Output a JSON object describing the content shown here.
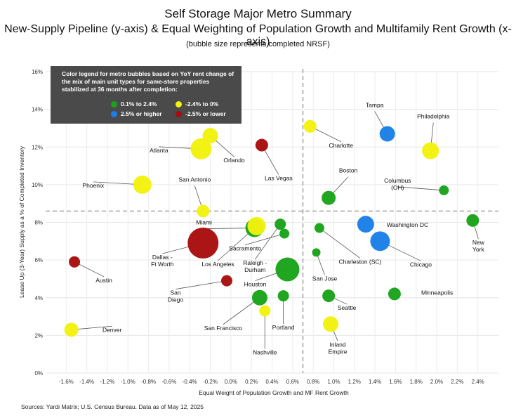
{
  "chart_data": {
    "type": "scatter",
    "title": "Self Storage Major Metro Summary",
    "subtitle": "New-Supply Pipeline (y-axis) & Equal Weighting of Population Growth and Multifamily Rent Growth (x-axis)",
    "note": "(bubble size represents completed NRSF)",
    "xlabel": "Equal Weight of Population Growth and MF Rent Growth",
    "ylabel": "Lease Up (3-Year) Supply as a % of Completed Inventory",
    "xlim": [
      -1.8,
      2.6
    ],
    "ylim": [
      0,
      16
    ],
    "xticks": [
      -1.6,
      -1.4,
      -1.2,
      -1.0,
      -0.8,
      -0.6,
      -0.4,
      -0.2,
      0.0,
      0.2,
      0.4,
      0.6,
      0.8,
      1.0,
      1.2,
      1.4,
      1.6,
      1.8,
      2.0,
      2.2,
      2.4
    ],
    "xtick_labels": [
      "-1.6%",
      "-1.4%",
      "-1.2%",
      "-1.0%",
      "-0.8%",
      "-0.6%",
      "-0.4%",
      "-0.2%",
      "0.0%",
      "0.2%",
      "0.4%",
      "0.6%",
      "0.8%",
      "1.0%",
      "1.2%",
      "1.4%",
      "1.6%",
      "1.8%",
      "2.0%",
      "2.2%",
      "2.4%"
    ],
    "yticks": [
      0,
      2,
      4,
      6,
      8,
      10,
      12,
      14,
      16
    ],
    "ytick_labels": [
      "0%",
      "2%",
      "4%",
      "6%",
      "8%",
      "10%",
      "12%",
      "14%",
      "16%"
    ],
    "reference_lines": {
      "x": 0.7,
      "y": 8.6
    },
    "grid": true,
    "legend": {
      "title": "Color legend for metro bubbles based on YoY rent change of the mix of main unit types for same-store properties stabilized at 36 months after completion:",
      "items": [
        {
          "label": "0.1% to 2.4%",
          "color": "#1aa31a"
        },
        {
          "label": "-2.4% to 0%",
          "color": "#f2f20d"
        },
        {
          "label": "2.5% or higher",
          "color": "#1a7fe6"
        },
        {
          "label": "-2.5% or lower",
          "color": "#a80d0d"
        }
      ]
    },
    "colors": {
      "green": "#1aa31a",
      "yellow": "#f2f20d",
      "blue": "#1a7fe6",
      "red": "#a80d0d"
    },
    "points": [
      {
        "name": "Tampa",
        "x": 1.52,
        "y": 12.7,
        "size": 11,
        "color": "blue",
        "label_lines": [
          "Tampa"
        ],
        "label_dx": -18,
        "label_dy": -38,
        "anchor": "middle",
        "leader": true
      },
      {
        "name": "Philadelphia",
        "x": 1.94,
        "y": 11.8,
        "size": 12,
        "color": "yellow",
        "label_lines": [
          "Philadelphia"
        ],
        "label_dx": 4,
        "label_dy": -46,
        "anchor": "middle",
        "leader": true
      },
      {
        "name": "Charlotte",
        "x": 0.77,
        "y": 13.1,
        "size": 9,
        "color": "yellow",
        "label_lines": [
          "Charlotte"
        ],
        "label_dx": 44,
        "label_dy": 30,
        "anchor": "middle",
        "leader": true
      },
      {
        "name": "Boston",
        "x": 0.95,
        "y": 9.3,
        "size": 10,
        "color": "green",
        "label_lines": [
          "Boston"
        ],
        "label_dx": 28,
        "label_dy": -36,
        "anchor": "middle",
        "leader": true
      },
      {
        "name": "Columbus (OH)",
        "x": 2.07,
        "y": 9.7,
        "size": 7,
        "color": "green",
        "label_lines": [
          "Columbus",
          "(OH)"
        ],
        "label_dx": -66,
        "label_dy": -11,
        "anchor": "middle",
        "leader": true
      },
      {
        "name": "Washington DC",
        "x": 1.31,
        "y": 7.9,
        "size": 12,
        "color": "blue",
        "label_lines": [
          "Washington DC"
        ],
        "label_dx": 30,
        "label_dy": 4,
        "anchor": "start",
        "leader": false
      },
      {
        "name": "New York",
        "x": 2.35,
        "y": 8.1,
        "size": 9,
        "color": "green",
        "label_lines": [
          "New",
          "York"
        ],
        "label_dx": 8,
        "label_dy": 34,
        "anchor": "middle",
        "leader": true
      },
      {
        "name": "Chicago",
        "x": 1.45,
        "y": 7.0,
        "size": 14,
        "color": "blue",
        "label_lines": [
          "Chicago"
        ],
        "label_dx": 58,
        "label_dy": 36,
        "anchor": "middle",
        "leader": true
      },
      {
        "name": "Charleston (SC)",
        "x": 0.86,
        "y": 7.7,
        "size": 7,
        "color": "green",
        "label_lines": [
          "Charleston (SC)"
        ],
        "label_dx": 58,
        "label_dy": 51,
        "anchor": "middle",
        "leader": true
      },
      {
        "name": "San Jose",
        "x": 0.83,
        "y": 6.4,
        "size": 6,
        "color": "green",
        "label_lines": [
          "San Jose"
        ],
        "label_dx": 12,
        "label_dy": 40,
        "anchor": "middle",
        "leader": true
      },
      {
        "name": "Seattle",
        "x": 0.95,
        "y": 4.1,
        "size": 9,
        "color": "green",
        "label_lines": [
          "Seattle"
        ],
        "label_dx": 26,
        "label_dy": 20,
        "anchor": "middle",
        "leader": true
      },
      {
        "name": "Minneapolis",
        "x": 1.59,
        "y": 4.2,
        "size": 9,
        "color": "green",
        "label_lines": [
          "Minneapolis"
        ],
        "label_dx": 38,
        "label_dy": 1,
        "anchor": "start",
        "leader": false
      },
      {
        "name": "Inland Empire",
        "x": 0.97,
        "y": 2.6,
        "size": 11,
        "color": "yellow",
        "label_lines": [
          "Inland",
          "Empire"
        ],
        "label_dx": 10,
        "label_dy": 32,
        "anchor": "middle",
        "leader": true
      },
      {
        "name": "Raleigh - Durham",
        "x": 0.48,
        "y": 7.9,
        "size": 8,
        "color": "green",
        "label_lines": [
          "Raleigh -",
          "Durham"
        ],
        "label_dx": -36,
        "label_dy": 58,
        "anchor": "middle",
        "leader": true
      },
      {
        "name": "Sacramento",
        "x": 0.52,
        "y": 7.4,
        "size": 7,
        "color": "green",
        "label_lines": [
          "Sacramento"
        ],
        "label_dx": -56,
        "label_dy": 24,
        "anchor": "middle",
        "leader": true
      },
      {
        "name": "Houston",
        "x": 0.55,
        "y": 5.5,
        "size": 17,
        "color": "green",
        "label_lines": [
          "Houston"
        ],
        "label_dx": -46,
        "label_dy": 24,
        "anchor": "middle",
        "leader": true
      },
      {
        "name": "Portland",
        "x": 0.51,
        "y": 4.1,
        "size": 8,
        "color": "green",
        "label_lines": [
          "Portland"
        ],
        "label_dx": 0,
        "label_dy": 48,
        "anchor": "middle",
        "leader": true
      },
      {
        "name": "Nashville",
        "x": 0.33,
        "y": 3.3,
        "size": 8,
        "color": "yellow",
        "label_lines": [
          "Nashville"
        ],
        "label_dx": 0,
        "label_dy": 62,
        "anchor": "middle",
        "leader": true
      },
      {
        "name": "San Francisco",
        "x": 0.28,
        "y": 4.0,
        "size": 11,
        "color": "green",
        "label_lines": [
          "San Francisco"
        ],
        "label_dx": -52,
        "label_dy": 46,
        "anchor": "middle",
        "leader": true
      },
      {
        "name": "Miami",
        "x": 0.23,
        "y": 7.7,
        "size": 13,
        "color": "green",
        "label_lines": [
          "Miami"
        ],
        "label_dx": -72,
        "label_dy": -5,
        "anchor": "middle",
        "leader": true
      },
      {
        "name": "Los Angeles",
        "x": 0.25,
        "y": 7.8,
        "size": 13,
        "color": "yellow",
        "label_lines": [
          "Los Angeles"
        ],
        "label_dx": -55,
        "label_dy": 57,
        "anchor": "middle",
        "leader": true
      },
      {
        "name": "Las Vegas",
        "x": 0.3,
        "y": 12.1,
        "size": 9,
        "color": "red",
        "label_lines": [
          "Las Vegas"
        ],
        "label_dx": 24,
        "label_dy": 50,
        "anchor": "middle",
        "leader": true
      },
      {
        "name": "Orlando",
        "x": -0.2,
        "y": 12.6,
        "size": 11,
        "color": "yellow",
        "label_lines": [
          "Orlando"
        ],
        "label_dx": 34,
        "label_dy": 38,
        "anchor": "middle",
        "leader": true
      },
      {
        "name": "Atlanta",
        "x": -0.29,
        "y": 11.9,
        "size": 15,
        "color": "yellow",
        "label_lines": [
          "Atlanta"
        ],
        "label_dx": -60,
        "label_dy": 5,
        "anchor": "middle",
        "leader": true
      },
      {
        "name": "Phoenix",
        "x": -0.86,
        "y": 10.0,
        "size": 13,
        "color": "yellow",
        "label_lines": [
          "Phoenix"
        ],
        "label_dx": -70,
        "label_dy": 4,
        "anchor": "middle",
        "leader": true
      },
      {
        "name": "San Antonio",
        "x": -0.27,
        "y": 8.6,
        "size": 9,
        "color": "yellow",
        "label_lines": [
          "San Antonio"
        ],
        "label_dx": -12,
        "label_dy": -42,
        "anchor": "middle",
        "leader": true
      },
      {
        "name": "Dallas - Ft Worth",
        "x": -0.27,
        "y": 6.9,
        "size": 22,
        "color": "red",
        "label_lines": [
          "Dallas -",
          "Ft Worth"
        ],
        "label_dx": -58,
        "label_dy": 23,
        "anchor": "middle",
        "leader": true
      },
      {
        "name": "San Diego",
        "x": -0.04,
        "y": 4.9,
        "size": 8,
        "color": "red",
        "label_lines": [
          "San",
          "Diego"
        ],
        "label_dx": -73,
        "label_dy": 20,
        "anchor": "middle",
        "leader": true
      },
      {
        "name": "Austin",
        "x": -1.52,
        "y": 5.9,
        "size": 8,
        "color": "red",
        "label_lines": [
          "Austin"
        ],
        "label_dx": 42,
        "label_dy": 29,
        "anchor": "middle",
        "leader": true
      },
      {
        "name": "Denver",
        "x": -1.55,
        "y": 2.3,
        "size": 10,
        "color": "yellow",
        "label_lines": [
          "Denver"
        ],
        "label_dx": 58,
        "label_dy": 3,
        "anchor": "middle",
        "leader": true
      }
    ]
  },
  "source": "Sources: Yardi Matrix; U.S. Census Bureau. Data as of May 12, 2025"
}
